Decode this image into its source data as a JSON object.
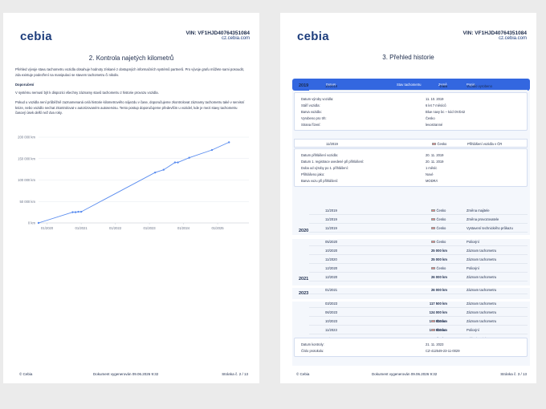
{
  "brand": "cebia",
  "vin_label": "VIN: VF1HJD40764351084",
  "website": "cz.cebia.com",
  "footer": {
    "copyright": "© Cebia",
    "generated": "Dokument vygenerován 09.06.2026 9:32"
  },
  "left_page": {
    "title": "2. Kontrola najetých kilometrů",
    "intro": "Přehled vývoje stavu tachometru vozidla obsahuje hodnoty získané z dostupných informačních systémů partnerů. Pro vývoje grafu můžete sami posoudit, zda existuje podezření na manipulaci se stavem tachometru či nikoliv.",
    "recommend_heading": "Doporučení",
    "recommend_1": "V systému nemusí být k dispozici všechny záznamy stavů tachometru z historie provozu vozidla.",
    "recommend_2": "Pokud u vozidla není průběžně zaznamenaná celá historie kilometrového nájezdu v čase, doporučujeme zkontrolovat záznamy tachometru také v servisní knize, nebo vozidlo nechat zkontrolovat v autorizovaném autoservisu. Tento postup doporučujeme především u vozidel, kde je mezi stavy tachometru časový úsek delší než dva roky.",
    "page_no": "Stránka č. 2 / 13"
  },
  "chart_data": {
    "type": "line",
    "title": "",
    "xlabel": "",
    "ylabel": "",
    "y_ticks": [
      "200 000 km",
      "150 000 km",
      "100 000 km",
      "50 000 km",
      "0 km"
    ],
    "y_tick_values": [
      200000,
      150000,
      100000,
      50000,
      0
    ],
    "x_ticks": [
      "01/2020",
      "01/2021",
      "01/2022",
      "01/2023",
      "01/2024",
      "01/2025"
    ],
    "x_tick_values": [
      "2020-01",
      "2021-01",
      "2022-01",
      "2023-01",
      "2024-01",
      "2025-01"
    ],
    "xlim": [
      "2019-10",
      "2025-12"
    ],
    "ylim": [
      0,
      200000
    ],
    "grid": true,
    "color": "#5b8def",
    "series": [
      {
        "name": "",
        "x": [
          "2019-10",
          "2020-10",
          "2020-11",
          "2020-12",
          "2021-01",
          "2023-03",
          "2023-06",
          "2023-10",
          "2023-11",
          "2024-03",
          "2024-11",
          "2025-05"
        ],
        "values": [
          0,
          25000,
          25000,
          26000,
          26000,
          117500,
          124000,
          141000,
          141000,
          152000,
          170000,
          188000
        ]
      }
    ]
  },
  "right_page": {
    "title": "3. Přehled historie",
    "columns": {
      "date": "Datum",
      "odometer": "Stav tachometru",
      "country": "Země",
      "description": "Popis"
    },
    "page_no": "Stránka č. 3 / 13",
    "years": [
      "2019",
      "2020",
      "2021",
      "2023"
    ],
    "row_2019": {
      "date": "10/2019",
      "km": "0 km",
      "desc": "Vozidlo vyrobeno"
    },
    "production_details": [
      {
        "k": "Datum výroby vozidla:",
        "v": "11. 10. 2019"
      },
      {
        "k": "Stáří vozidla:",
        "v": "6 let 7 měsíců"
      },
      {
        "k": "Barva vozidla:",
        "v": "Blue navy bc – kód OVD42"
      },
      {
        "k": "Vyrobeno pro trh:",
        "v": "Česko"
      },
      {
        "k": "Strana řízení:",
        "v": "levostranné"
      }
    ],
    "row_registration": {
      "date": "11/2019",
      "country": "Česko",
      "desc": "Přihlášení vozidla v ČR"
    },
    "registration_details": [
      {
        "k": "Datum přihlášení vozidla:",
        "v": "20. 11. 2019"
      },
      {
        "k": "Datum 1. registrace uvedené při přihlášení:",
        "v": "20. 11. 2019"
      },
      {
        "k": "Doba od výroby po 1. přihlášení:",
        "v": "1 měsíc"
      },
      {
        "k": "Přihlášeno jako:",
        "v": "Nové"
      },
      {
        "k": "Barva vozu při přihlášení:",
        "v": "MODRÁ"
      }
    ],
    "rows_2019_more": [
      {
        "date": "11/2019",
        "km": "",
        "country": "Česko",
        "desc": "Změna majitele"
      },
      {
        "date": "11/2019",
        "km": "",
        "country": "Česko",
        "desc": "Změna provozovatele"
      },
      {
        "date": "11/2019",
        "km": "",
        "country": "Česko",
        "desc": "Vystavení technického průkazu"
      }
    ],
    "rows_2020": [
      {
        "date": "05/2020",
        "km": "",
        "country": "Česko",
        "desc": "Policejní"
      },
      {
        "date": "10/2020",
        "km": "25 000 km",
        "country": "",
        "desc": "Záznam tachometru"
      },
      {
        "date": "11/2020",
        "km": "25 000 km",
        "country": "",
        "desc": "Záznam tachometru"
      },
      {
        "date": "12/2020",
        "km": "",
        "country": "Česko",
        "desc": "Policejní"
      },
      {
        "date": "12/2020",
        "km": "26 000 km",
        "country": "",
        "desc": "Záznam tachometru"
      }
    ],
    "rows_2021": [
      {
        "date": "01/2021",
        "km": "26 000 km",
        "country": "",
        "desc": "Záznam tachometru"
      }
    ],
    "rows_2023": [
      {
        "date": "03/2023",
        "km": "117 500 km",
        "country": "",
        "desc": "Záznam tachometru"
      },
      {
        "date": "06/2023",
        "km": "124 000 km",
        "country": "",
        "desc": "Záznam tachometru"
      },
      {
        "date": "10/2023",
        "km": "141 000 km",
        "country": "Česko",
        "desc": "Záznam tachometru"
      },
      {
        "date": "11/2023",
        "km": "141 000 km",
        "country": "Česko",
        "desc": "Policejní"
      },
      {
        "date": "11/2023",
        "km": "141 000 km",
        "country": "Česko",
        "desc": "Měření emisí"
      }
    ],
    "inspection_details": [
      {
        "k": "Datum kontroly:",
        "v": "21. 11. 2023"
      },
      {
        "k": "Číslo protokolu:",
        "v": "CZ-412549-23-11-0029"
      }
    ]
  }
}
